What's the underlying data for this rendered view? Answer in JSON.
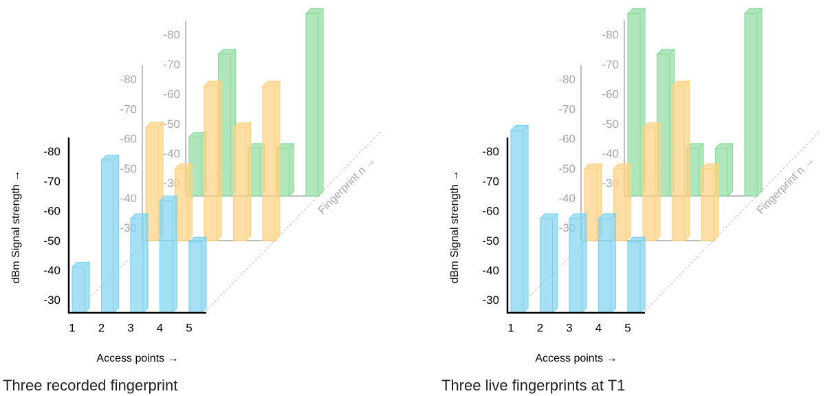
{
  "chart_data": [
    {
      "type": "bar3d",
      "title": "Three recorded fingerprint",
      "ylabel": "dBm Signal strength →",
      "xlabel": "Access points →",
      "zlabel": "Fingerprint n →",
      "categories": [
        "1",
        "2",
        "3",
        "4",
        "5"
      ],
      "series": [
        {
          "color": "#7fd3f0",
          "values": [
            -41.4,
            -77.4,
            -57.7,
            -63.7,
            -49.8
          ]
        },
        {
          "color": "#ffd27f",
          "values": [
            -64.2,
            -50.2,
            -78,
            -64,
            -78
          ]
        },
        {
          "color": "#8fdc9f",
          "values": [
            -45.8,
            -73.7,
            -42,
            -42,
            -87.4
          ]
        }
      ],
      "ylim": [
        -26,
        -85
      ],
      "yticks": [
        -30,
        -40,
        -50,
        -60,
        -70,
        -80
      ]
    },
    {
      "type": "bar3d",
      "title": "Three live fingerprints at T1",
      "ylabel": "dBm Signal strength →",
      "xlabel": "Access points →",
      "zlabel": "Fingerprint n →",
      "categories": [
        "1",
        "2",
        "3",
        "4",
        "5"
      ],
      "series": [
        {
          "color": "#7fd3f0",
          "values": [
            -87.4,
            -57.7,
            -57.7,
            -57.7,
            -49.8
          ]
        },
        {
          "color": "#ffd27f",
          "values": [
            -50.2,
            -50.2,
            -64,
            -78,
            -50.2
          ]
        },
        {
          "color": "#8fdc9f",
          "values": [
            -87.4,
            -73.7,
            -42,
            -42,
            -87.4
          ]
        }
      ],
      "ylim": [
        -26,
        -85
      ],
      "yticks": [
        -30,
        -40,
        -50,
        -60,
        -70,
        -80
      ]
    }
  ]
}
